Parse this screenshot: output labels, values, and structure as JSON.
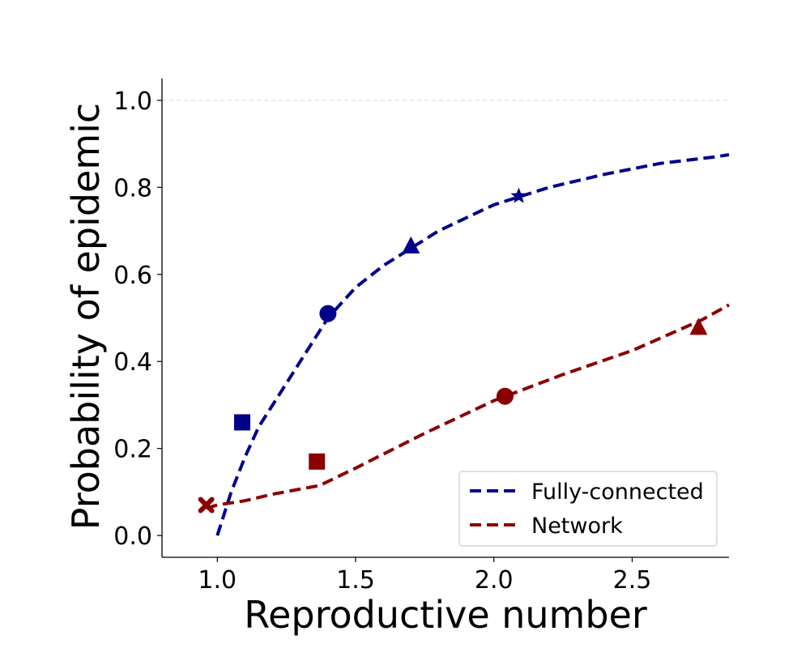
{
  "chart_data": {
    "type": "line",
    "title": "",
    "xlabel": "Reproductive number",
    "ylabel": "Probability of epidemic",
    "xlim": [
      0.8,
      2.85
    ],
    "ylim": [
      -0.05,
      1.05
    ],
    "xticks": [
      1.0,
      1.5,
      2.0,
      2.5
    ],
    "yticks": [
      0.0,
      0.2,
      0.4,
      0.6,
      0.8,
      1.0
    ],
    "xtick_labels": [
      "1.0",
      "1.5",
      "2.0",
      "2.5"
    ],
    "ytick_labels": [
      "0.0",
      "0.2",
      "0.4",
      "0.6",
      "0.8",
      "1.0"
    ],
    "reference_line": {
      "y": 1.0,
      "style": "dashed",
      "color": "#dddddd"
    },
    "grid": false,
    "legend": {
      "position": "bottom-right"
    },
    "colors": {
      "fully_connected": "#00008b",
      "network": "#8b0000"
    },
    "series": [
      {
        "name": "Fully-connected",
        "style": "dashed",
        "color": "#00008b",
        "x": [
          1.0,
          1.05,
          1.1,
          1.15,
          1.2,
          1.3,
          1.4,
          1.5,
          1.6,
          1.7,
          1.8,
          1.9,
          2.0,
          2.2,
          2.4,
          2.6,
          2.8,
          2.85
        ],
        "y": [
          0.0,
          0.1,
          0.18,
          0.25,
          0.3,
          0.4,
          0.5,
          0.57,
          0.62,
          0.66,
          0.7,
          0.73,
          0.76,
          0.8,
          0.83,
          0.855,
          0.87,
          0.875
        ],
        "markers": [
          {
            "shape": "square",
            "x": 1.09,
            "y": 0.26
          },
          {
            "shape": "circle",
            "x": 1.4,
            "y": 0.51
          },
          {
            "shape": "triangle",
            "x": 1.7,
            "y": 0.665
          },
          {
            "shape": "star",
            "x": 2.09,
            "y": 0.78
          }
        ]
      },
      {
        "name": "Network",
        "style": "dashed",
        "color": "#8b0000",
        "x": [
          0.96,
          1.0,
          1.1,
          1.2,
          1.37,
          1.5,
          1.75,
          2.0,
          2.25,
          2.5,
          2.75,
          2.85
        ],
        "y": [
          0.063,
          0.07,
          0.08,
          0.095,
          0.115,
          0.155,
          0.235,
          0.31,
          0.37,
          0.425,
          0.495,
          0.53
        ],
        "markers": [
          {
            "shape": "x",
            "x": 0.96,
            "y": 0.07
          },
          {
            "shape": "square",
            "x": 1.36,
            "y": 0.17
          },
          {
            "shape": "circle",
            "x": 2.04,
            "y": 0.32
          },
          {
            "shape": "triangle",
            "x": 2.74,
            "y": 0.478
          }
        ]
      }
    ]
  }
}
